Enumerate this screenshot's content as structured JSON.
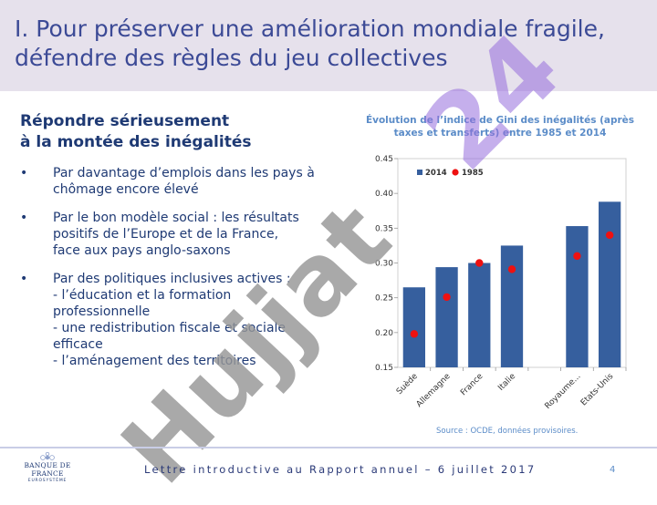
{
  "header": {
    "title_lines": [
      "I. Pour préserver une amélioration mondiale fragile,",
      "défendre des règles du jeu collectives"
    ],
    "watermark": "24"
  },
  "left": {
    "heading_lines": [
      "Répondre sérieusement",
      "à la montée des inégalités"
    ],
    "bullet_symbol": "•",
    "bullets": [
      {
        "lines": [
          "Par davantage d’emplois dans les pays à",
          "chômage encore élevé"
        ]
      },
      {
        "lines": [
          "Par le bon modèle social : les résultats",
          "positifs de l’Europe et de la France,",
          "face aux pays anglo-saxons"
        ]
      },
      {
        "lines": [
          "Par des politiques inclusives actives :",
          "- l’éducation et la formation",
          "professionnelle",
          "- une redistribution fiscale et sociale",
          "efficace",
          "- l’aménagement des territoires"
        ]
      }
    ],
    "watermark": "Hujjat"
  },
  "chart_data": {
    "type": "bar",
    "title": "Évolution de l’indice de Gini des inégalités (après taxes et transferts) entre 1985 et 2014",
    "categories": [
      "Suède",
      "Allemagne",
      "France",
      "Italie",
      "",
      "Royaume...",
      "Etats-Unis"
    ],
    "series": [
      {
        "name": "2014",
        "type": "bar",
        "color": "#365f9e",
        "values": [
          0.265,
          0.294,
          0.3,
          0.325,
          null,
          0.353,
          0.388
        ]
      },
      {
        "name": "1985",
        "type": "scatter",
        "color": "#ee1111",
        "values": [
          0.198,
          0.251,
          0.3,
          0.291,
          null,
          0.31,
          0.34
        ]
      }
    ],
    "ylim": [
      0.15,
      0.45
    ],
    "yticks": [
      "0.15",
      "0.20",
      "0.25",
      "0.30",
      "0.35",
      "0.40",
      "0.45"
    ],
    "legend": [
      {
        "label": "2014"
      },
      {
        "label": "1985"
      }
    ],
    "legend_position": "top-left",
    "source": "Source : OCDE, données provisoires."
  },
  "footer": {
    "text": "Lettre introductive au Rapport annuel – 6 juillet 2017",
    "page": "4",
    "logo_name": "BANQUE DE FRANCE",
    "logo_sub": "EUROSYSTÈME"
  }
}
